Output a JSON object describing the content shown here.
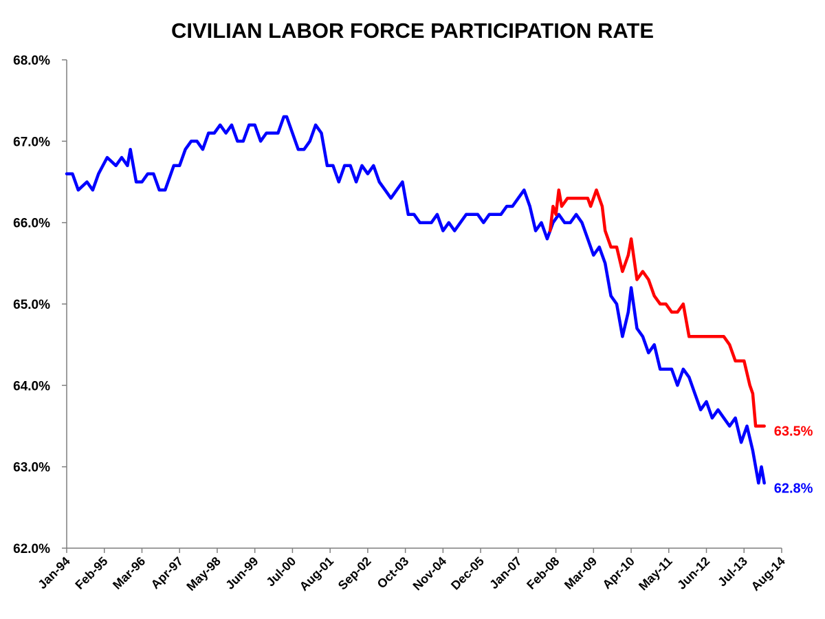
{
  "chart_data": {
    "type": "line",
    "title": "CIVILIAN LABOR FORCE PARTICIPATION RATE",
    "xlabel": "",
    "ylabel": "",
    "ylim": [
      62.0,
      68.0
    ],
    "y_ticks": [
      "62.0%",
      "63.0%",
      "64.0%",
      "65.0%",
      "66.0%",
      "67.0%",
      "68.0%"
    ],
    "y_tick_values": [
      62,
      63,
      64,
      65,
      66,
      67,
      68
    ],
    "x_ticks": [
      "Jan-94",
      "Feb-95",
      "Mar-96",
      "Apr-97",
      "May-98",
      "Jun-99",
      "Jul-00",
      "Aug-01",
      "Sep-02",
      "Oct-03",
      "Nov-04",
      "Dec-05",
      "Jan-07",
      "Feb-08",
      "Mar-09",
      "Apr-10",
      "May-11",
      "Jun-12",
      "Jul-13",
      "Aug-14"
    ],
    "x_tick_dates": [
      "1994-01",
      "1995-02",
      "1996-03",
      "1997-04",
      "1998-05",
      "1999-06",
      "2000-07",
      "2001-08",
      "2002-09",
      "2003-10",
      "2004-11",
      "2005-12",
      "2007-01",
      "2008-02",
      "2009-03",
      "2010-04",
      "2011-05",
      "2012-06",
      "2013-07",
      "2014-08"
    ],
    "grid": false,
    "legend": "none",
    "series": [
      {
        "color": "#0000ff",
        "end_label": "62.8%",
        "points": [
          [
            "1994-01",
            66.6
          ],
          [
            "1994-03",
            66.6
          ],
          [
            "1994-05",
            66.4
          ],
          [
            "1994-08",
            66.5
          ],
          [
            "1994-10",
            66.4
          ],
          [
            "1994-12",
            66.6
          ],
          [
            "1995-03",
            66.8
          ],
          [
            "1995-06",
            66.7
          ],
          [
            "1995-08",
            66.8
          ],
          [
            "1995-10",
            66.7
          ],
          [
            "1995-11",
            66.9
          ],
          [
            "1996-01",
            66.5
          ],
          [
            "1996-03",
            66.5
          ],
          [
            "1996-05",
            66.6
          ],
          [
            "1996-07",
            66.6
          ],
          [
            "1996-09",
            66.4
          ],
          [
            "1996-11",
            66.4
          ],
          [
            "1997-02",
            66.7
          ],
          [
            "1997-04",
            66.7
          ],
          [
            "1997-06",
            66.9
          ],
          [
            "1997-08",
            67.0
          ],
          [
            "1997-10",
            67.0
          ],
          [
            "1997-12",
            66.9
          ],
          [
            "1998-02",
            67.1
          ],
          [
            "1998-04",
            67.1
          ],
          [
            "1998-06",
            67.2
          ],
          [
            "1998-08",
            67.1
          ],
          [
            "1998-10",
            67.2
          ],
          [
            "1998-12",
            67.0
          ],
          [
            "1999-02",
            67.0
          ],
          [
            "1999-04",
            67.2
          ],
          [
            "1999-06",
            67.2
          ],
          [
            "1999-08",
            67.0
          ],
          [
            "1999-10",
            67.1
          ],
          [
            "1999-12",
            67.1
          ],
          [
            "2000-02",
            67.1
          ],
          [
            "2000-04",
            67.3
          ],
          [
            "2000-05",
            67.3
          ],
          [
            "2000-07",
            67.1
          ],
          [
            "2000-09",
            66.9
          ],
          [
            "2000-11",
            66.9
          ],
          [
            "2001-01",
            67.0
          ],
          [
            "2001-03",
            67.2
          ],
          [
            "2001-05",
            67.1
          ],
          [
            "2001-07",
            66.7
          ],
          [
            "2001-09",
            66.7
          ],
          [
            "2001-11",
            66.5
          ],
          [
            "2002-01",
            66.7
          ],
          [
            "2002-03",
            66.7
          ],
          [
            "2002-05",
            66.5
          ],
          [
            "2002-07",
            66.7
          ],
          [
            "2002-09",
            66.6
          ],
          [
            "2002-11",
            66.7
          ],
          [
            "2003-01",
            66.5
          ],
          [
            "2003-03",
            66.4
          ],
          [
            "2003-05",
            66.3
          ],
          [
            "2003-07",
            66.4
          ],
          [
            "2003-09",
            66.5
          ],
          [
            "2003-11",
            66.1
          ],
          [
            "2004-01",
            66.1
          ],
          [
            "2004-03",
            66.0
          ],
          [
            "2004-05",
            66.0
          ],
          [
            "2004-07",
            66.0
          ],
          [
            "2004-09",
            66.1
          ],
          [
            "2004-11",
            65.9
          ],
          [
            "2005-01",
            66.0
          ],
          [
            "2005-03",
            65.9
          ],
          [
            "2005-05",
            66.0
          ],
          [
            "2005-07",
            66.1
          ],
          [
            "2005-09",
            66.1
          ],
          [
            "2005-11",
            66.1
          ],
          [
            "2006-01",
            66.0
          ],
          [
            "2006-03",
            66.1
          ],
          [
            "2006-05",
            66.1
          ],
          [
            "2006-07",
            66.1
          ],
          [
            "2006-09",
            66.2
          ],
          [
            "2006-11",
            66.2
          ],
          [
            "2007-01",
            66.3
          ],
          [
            "2007-03",
            66.4
          ],
          [
            "2007-05",
            66.2
          ],
          [
            "2007-07",
            65.9
          ],
          [
            "2007-09",
            66.0
          ],
          [
            "2007-11",
            65.8
          ],
          [
            "2008-01",
            66.0
          ],
          [
            "2008-03",
            66.1
          ],
          [
            "2008-05",
            66.0
          ],
          [
            "2008-07",
            66.0
          ],
          [
            "2008-09",
            66.1
          ],
          [
            "2008-11",
            66.0
          ],
          [
            "2009-01",
            65.8
          ],
          [
            "2009-03",
            65.6
          ],
          [
            "2009-05",
            65.7
          ],
          [
            "2009-07",
            65.5
          ],
          [
            "2009-09",
            65.1
          ],
          [
            "2009-11",
            65.0
          ],
          [
            "2010-01",
            64.6
          ],
          [
            "2010-03",
            64.9
          ],
          [
            "2010-04",
            65.2
          ],
          [
            "2010-06",
            64.7
          ],
          [
            "2010-08",
            64.6
          ],
          [
            "2010-10",
            64.4
          ],
          [
            "2010-12",
            64.5
          ],
          [
            "2011-02",
            64.2
          ],
          [
            "2011-04",
            64.2
          ],
          [
            "2011-06",
            64.2
          ],
          [
            "2011-08",
            64.0
          ],
          [
            "2011-10",
            64.2
          ],
          [
            "2011-12",
            64.1
          ],
          [
            "2012-02",
            63.9
          ],
          [
            "2012-04",
            63.7
          ],
          [
            "2012-06",
            63.8
          ],
          [
            "2012-08",
            63.6
          ],
          [
            "2012-10",
            63.7
          ],
          [
            "2012-12",
            63.6
          ],
          [
            "2013-02",
            63.5
          ],
          [
            "2013-04",
            63.6
          ],
          [
            "2013-06",
            63.3
          ],
          [
            "2013-08",
            63.5
          ],
          [
            "2013-10",
            63.2
          ],
          [
            "2013-12",
            62.8
          ],
          [
            "2014-01",
            63.0
          ],
          [
            "2014-02",
            62.8
          ]
        ]
      },
      {
        "color": "#ff0000",
        "end_label": "63.5%",
        "points": [
          [
            "2007-12",
            65.9
          ],
          [
            "2008-01",
            66.2
          ],
          [
            "2008-02",
            66.1
          ],
          [
            "2008-03",
            66.4
          ],
          [
            "2008-04",
            66.2
          ],
          [
            "2008-06",
            66.3
          ],
          [
            "2008-08",
            66.3
          ],
          [
            "2008-10",
            66.3
          ],
          [
            "2008-12",
            66.3
          ],
          [
            "2009-01",
            66.3
          ],
          [
            "2009-02",
            66.2
          ],
          [
            "2009-04",
            66.4
          ],
          [
            "2009-06",
            66.2
          ],
          [
            "2009-07",
            65.9
          ],
          [
            "2009-09",
            65.7
          ],
          [
            "2009-11",
            65.7
          ],
          [
            "2010-01",
            65.4
          ],
          [
            "2010-03",
            65.6
          ],
          [
            "2010-04",
            65.8
          ],
          [
            "2010-06",
            65.3
          ],
          [
            "2010-08",
            65.4
          ],
          [
            "2010-10",
            65.3
          ],
          [
            "2010-12",
            65.1
          ],
          [
            "2011-02",
            65.0
          ],
          [
            "2011-04",
            65.0
          ],
          [
            "2011-06",
            64.9
          ],
          [
            "2011-08",
            64.9
          ],
          [
            "2011-10",
            65.0
          ],
          [
            "2011-12",
            64.6
          ],
          [
            "2012-02",
            64.6
          ],
          [
            "2012-04",
            64.6
          ],
          [
            "2012-06",
            64.6
          ],
          [
            "2012-08",
            64.6
          ],
          [
            "2012-10",
            64.6
          ],
          [
            "2012-12",
            64.6
          ],
          [
            "2013-02",
            64.5
          ],
          [
            "2013-04",
            64.3
          ],
          [
            "2013-06",
            64.3
          ],
          [
            "2013-07",
            64.3
          ],
          [
            "2013-09",
            64.0
          ],
          [
            "2013-10",
            63.9
          ],
          [
            "2013-11",
            63.5
          ],
          [
            "2013-12",
            63.5
          ],
          [
            "2014-01",
            63.5
          ],
          [
            "2014-02",
            63.5
          ]
        ]
      }
    ]
  }
}
